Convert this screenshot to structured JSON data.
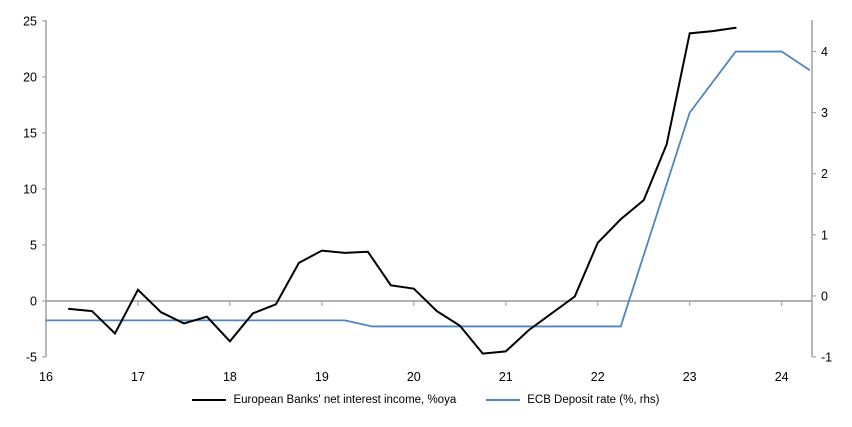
{
  "page": {
    "background": "#ffffff"
  },
  "colors": {
    "axis_gray": "#a6a6a6",
    "tick_text": "#000000",
    "nii_line": "#000000",
    "ecb_line": "#4f86bd"
  },
  "legend": {
    "items": [
      {
        "label": "European Banks' net interest income, %oya",
        "color": "#000000"
      },
      {
        "label": "ECB Deposit rate (%, rhs)",
        "color": "#4f86bd"
      }
    ]
  },
  "chart_data": {
    "type": "line",
    "title": "",
    "xlabel": "",
    "ylabel_left": "",
    "ylabel_right": "",
    "grid": "zero-line-only",
    "legend_position": "bottom-center",
    "x_axis": {
      "min": 16,
      "max": 24.33,
      "ticks": [
        16,
        17,
        18,
        19,
        20,
        21,
        22,
        23,
        24
      ],
      "tick_labels": [
        "16",
        "17",
        "18",
        "19",
        "20",
        "21",
        "22",
        "23",
        "24"
      ]
    },
    "left_axis": {
      "min": -5,
      "max": 25,
      "ticks": [
        -5,
        0,
        5,
        10,
        15,
        20,
        25
      ],
      "tick_labels": [
        "-5",
        "0",
        "5",
        "10",
        "15",
        "20",
        "25"
      ]
    },
    "right_axis": {
      "min": -1,
      "max": 4.5,
      "ticks": [
        -1,
        0,
        1,
        2,
        3,
        4
      ],
      "tick_labels": [
        "-1",
        "0",
        "1",
        "2",
        "3",
        "4"
      ]
    },
    "series": [
      {
        "name": "European Banks' net interest income, %oya",
        "axis": "left",
        "color": "#000000",
        "stroke_width": 2,
        "x": [
          16.25,
          16.5,
          16.75,
          17.0,
          17.25,
          17.5,
          17.75,
          18.0,
          18.25,
          18.5,
          18.75,
          19.0,
          19.25,
          19.5,
          19.75,
          20.0,
          20.25,
          20.5,
          20.75,
          21.0,
          21.25,
          21.5,
          21.75,
          22.0,
          22.25,
          22.5,
          22.75,
          23.0,
          23.25,
          23.5
        ],
        "values": [
          -0.7,
          -0.9,
          -2.9,
          1.0,
          -1.0,
          -2.0,
          -1.4,
          -3.6,
          -1.1,
          -0.3,
          3.4,
          4.5,
          4.3,
          4.4,
          1.4,
          1.1,
          -0.9,
          -2.2,
          -4.7,
          -4.5,
          -2.6,
          -1.1,
          0.4,
          5.2,
          7.3,
          9.0,
          14.0,
          23.9,
          24.1,
          24.4
        ]
      },
      {
        "name": "ECB Deposit rate (%, rhs)",
        "axis": "right",
        "color": "#4f86bd",
        "stroke_width": 1.8,
        "x": [
          16.0,
          19.25,
          19.55,
          22.25,
          23.0,
          23.5,
          24.0,
          24.3
        ],
        "values": [
          -0.4,
          -0.4,
          -0.5,
          -0.5,
          3.0,
          4.0,
          4.0,
          3.7
        ]
      }
    ]
  }
}
